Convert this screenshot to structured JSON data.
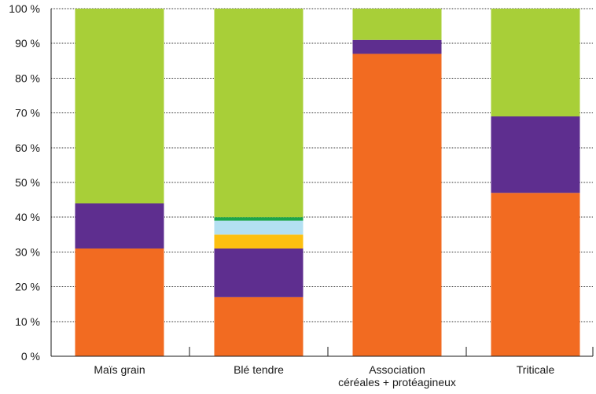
{
  "chart_data": {
    "type": "bar",
    "stacked": true,
    "grid": true,
    "legend": "none",
    "ylim": [
      0,
      100
    ],
    "y_ticks": [
      "0 %",
      "10 %",
      "20 %",
      "30 %",
      "40 %",
      "50 %",
      "60 %",
      "70 %",
      "80 %",
      "90 %",
      "100 %"
    ],
    "categories": [
      [
        "Maïs grain"
      ],
      [
        "Blé tendre"
      ],
      [
        "Association",
        "céréales + protéagineux"
      ],
      [
        "Triticale"
      ]
    ],
    "series": [
      {
        "color": "#f26b21",
        "values": [
          31,
          17,
          87,
          47
        ]
      },
      {
        "color": "#5e2e8f",
        "values": [
          13,
          14,
          4,
          22
        ]
      },
      {
        "color": "#fdc010",
        "values": [
          0,
          4,
          0,
          0
        ]
      },
      {
        "color": "#b3e0f2",
        "values": [
          0,
          4,
          0,
          0
        ]
      },
      {
        "color": "#1aa64a",
        "values": [
          0,
          1,
          0,
          0
        ]
      },
      {
        "color": "#a8cf38",
        "values": [
          56,
          60,
          9,
          31
        ]
      }
    ]
  }
}
